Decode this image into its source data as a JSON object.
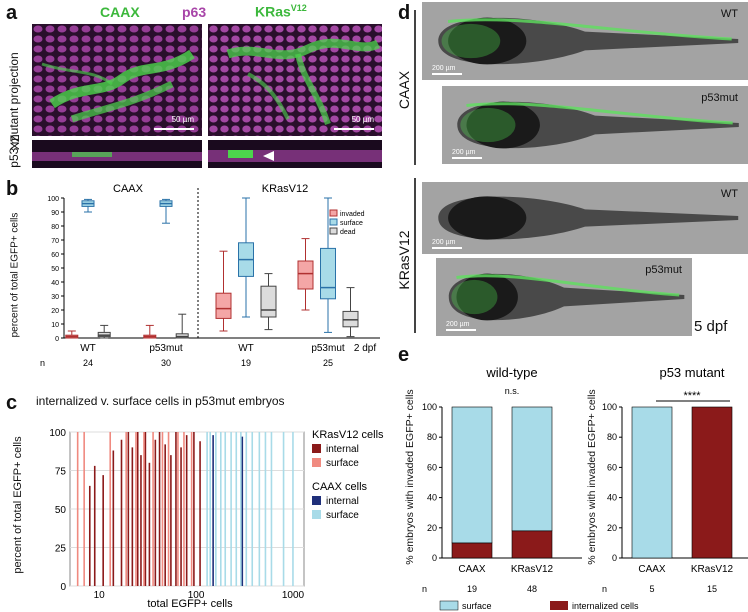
{
  "panel_a": {
    "letter": "a",
    "caax": "CAAX",
    "p63": "p63",
    "kras": "KRas",
    "kras_sup": "V12",
    "side_label": "p53 mutant projection",
    "xz": "XZ",
    "scale": "50 µm",
    "colors": {
      "caax": "#3cb83c",
      "p63": "#a845a8"
    }
  },
  "panel_b": {
    "letter": "b",
    "ylabel": "percent of total EGFP+ cells",
    "group_caax": "CAAX",
    "group_kras": "KRasV12",
    "legend": [
      "invaded",
      "surface",
      "dead"
    ],
    "stage": "2 dpf",
    "xticks": [
      "WT",
      "p53mut",
      "WT",
      "p53mut"
    ],
    "n_label": "n",
    "n_values": [
      "24",
      "30",
      "19",
      "25"
    ],
    "yticks": [
      "0",
      "10",
      "20",
      "30",
      "40",
      "50",
      "60",
      "70",
      "80",
      "90",
      "100"
    ]
  },
  "panel_c": {
    "letter": "c",
    "title": "internalized v. surface cells in p53mut embryos",
    "ylabel": "percent of total EGFP+ cells",
    "xlabel": "total EGFP+ cells",
    "legend_kras": "KRasV12 cells",
    "legend_caax": "CAAX cells",
    "internal": "internal",
    "surface": "surface",
    "yticks": [
      "0",
      "25",
      "50",
      "75",
      "100"
    ],
    "xticks": [
      "10",
      "100",
      "1000"
    ]
  },
  "panel_d": {
    "letter": "d",
    "caax": "CAAX",
    "kras": "KRasV12",
    "fish": [
      {
        "label": "WT",
        "scale": "200 µm"
      },
      {
        "label": "p53mut",
        "scale": "200 µm"
      },
      {
        "label": "WT",
        "scale": "200 µm"
      },
      {
        "label": "p53mut",
        "scale": "200 µm"
      }
    ],
    "stage": "5 dpf"
  },
  "panel_e": {
    "letter": "e",
    "ylabel": "% embryos with invaded EGFP+ cells",
    "left_title": "wild-type",
    "right_title": "p53 mutant",
    "ns": "n.s.",
    "stars": "****",
    "xticks": [
      "CAAX",
      "KRasV12"
    ],
    "n_label": "n",
    "n_left": [
      "19",
      "48"
    ],
    "n_right": [
      "5",
      "15"
    ],
    "yticks": [
      "0",
      "20",
      "40",
      "60",
      "80",
      "100"
    ],
    "legend_surface": "surface",
    "legend_internal": "internalized cells",
    "colors": {
      "surface": "#a8dbe8",
      "internal": "#8b1a1a"
    }
  },
  "chart_data": [
    {
      "type": "box",
      "title": "",
      "ylabel": "percent of total EGFP+ cells",
      "ylim": [
        0,
        100
      ],
      "categories": [
        "CAAX WT",
        "CAAX p53mut",
        "KRasV12 WT",
        "KRasV12 p53mut"
      ],
      "series": [
        {
          "name": "invaded",
          "medians": [
            1,
            1,
            21,
            46
          ],
          "q1": [
            0,
            0,
            14,
            35
          ],
          "q3": [
            2,
            2,
            32,
            55
          ],
          "whisker_low": [
            0,
            0,
            5,
            20
          ],
          "whisker_high": [
            5,
            9,
            62,
            71
          ]
        },
        {
          "name": "surface",
          "medians": [
            96,
            96,
            56,
            36
          ],
          "q1": [
            94,
            94,
            44,
            28
          ],
          "q3": [
            98,
            98,
            68,
            64
          ],
          "whisker_low": [
            90,
            82,
            15,
            4
          ],
          "whisker_high": [
            99,
            99,
            100,
            100
          ]
        },
        {
          "name": "dead",
          "medians": [
            2,
            1,
            20,
            13
          ],
          "q1": [
            1,
            0,
            15,
            8
          ],
          "q3": [
            4,
            3,
            37,
            19
          ],
          "whisker_low": [
            0,
            0,
            6,
            1
          ],
          "whisker_high": [
            9,
            17,
            46,
            36
          ]
        }
      ]
    },
    {
      "type": "bar",
      "title": "internalized v. surface cells in p53mut embryos",
      "xlabel": "total EGFP+ cells",
      "ylabel": "percent of total EGFP+ cells",
      "xscale": "log",
      "xlim": [
        5,
        1300
      ],
      "ylim": [
        0,
        100
      ],
      "series": [
        {
          "name": "KRasV12 internal",
          "x": [
            8,
            9,
            11,
            14,
            17,
            20,
            22,
            25,
            27,
            30,
            33,
            38,
            42,
            48,
            55,
            62,
            70,
            80,
            95,
            110
          ],
          "values": [
            65,
            78,
            72,
            88,
            95,
            100,
            90,
            100,
            85,
            100,
            80,
            95,
            100,
            92,
            85,
            100,
            90,
            98,
            100,
            94
          ]
        },
        {
          "name": "KRasV12 surface",
          "x": [
            6,
            7,
            13,
            19,
            24,
            29,
            36,
            45,
            52,
            65,
            75,
            90
          ],
          "values": [
            100,
            100,
            100,
            100,
            100,
            100,
            100,
            100,
            100,
            100,
            100,
            100
          ]
        },
        {
          "name": "CAAX internal",
          "x": [
            150,
            300
          ],
          "values": [
            98,
            97
          ]
        },
        {
          "name": "CAAX surface",
          "x": [
            130,
            140,
            160,
            180,
            200,
            230,
            260,
            290,
            330,
            380,
            450,
            520,
            600,
            800,
            1000
          ],
          "values": [
            100,
            100,
            100,
            100,
            100,
            100,
            100,
            100,
            100,
            100,
            100,
            100,
            100,
            100,
            100
          ]
        }
      ]
    },
    {
      "type": "bar",
      "title": "wild-type",
      "ylabel": "% embryos with invaded EGFP+ cells",
      "ylim": [
        0,
        100
      ],
      "categories": [
        "CAAX",
        "KRasV12"
      ],
      "series": [
        {
          "name": "internalized cells",
          "values": [
            10,
            18
          ]
        },
        {
          "name": "surface",
          "values": [
            90,
            82
          ]
        }
      ]
    },
    {
      "type": "bar",
      "title": "p53 mutant",
      "ylabel": "% embryos with invaded EGFP+ cells",
      "ylim": [
        0,
        100
      ],
      "categories": [
        "CAAX",
        "KRasV12"
      ],
      "series": [
        {
          "name": "internalized cells",
          "values": [
            0,
            100
          ]
        },
        {
          "name": "surface",
          "values": [
            100,
            0
          ]
        }
      ]
    }
  ]
}
